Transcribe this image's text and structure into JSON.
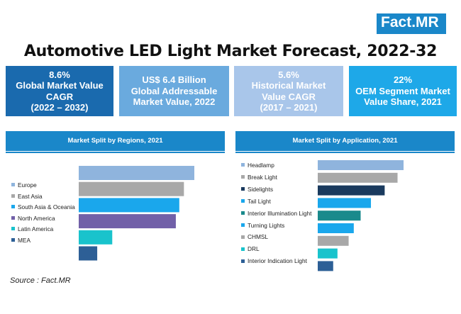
{
  "brand": {
    "logo_text": "Fact",
    "logo_suffix": ".MR"
  },
  "title": "Automotive LED Light Market Forecast, 2022-32",
  "kpis": [
    {
      "line1": "8.6%",
      "line2": "Global Market Value",
      "line3": "CAGR",
      "line4": "(2022 – 2032)",
      "color": "#1a6aae"
    },
    {
      "line1": "US$ 6.4 Billion",
      "line2": "Global Addressable",
      "line3": "Market Value, 2022",
      "line4": "",
      "color": "#6aaade"
    },
    {
      "line1": "5.6%",
      "line2": "Historical Market",
      "line3": "Value CAGR",
      "line4": "(2017 – 2021)",
      "color": "#a9c6ea"
    },
    {
      "line1": "22%",
      "line2": "OEM Segment Market",
      "line3": "Value Share, 2021",
      "line4": "",
      "color": "#1ea8e8"
    }
  ],
  "source": "Source : Fact.MR",
  "chart_data": [
    {
      "type": "bar",
      "orientation": "horizontal",
      "title": "Market Split by Regions, 2021",
      "categories": [
        "Europe",
        "East Asia",
        "South Asia & Oceania",
        "North America",
        "Latin America",
        "MEA"
      ],
      "values": [
        100,
        91,
        87,
        84,
        29,
        16
      ],
      "colors": [
        "#8fb4dd",
        "#a8a8a8",
        "#1aa7ec",
        "#7160a8",
        "#19c3cc",
        "#2d5f96"
      ],
      "xlabel": "",
      "ylabel": "",
      "xlim": [
        0,
        100
      ]
    },
    {
      "type": "bar",
      "orientation": "horizontal",
      "title": "Market Split by Application, 2021",
      "categories": [
        "Headlamp",
        "Break Light",
        "Sidelights",
        "Tail Light",
        "Interior Illumination Light",
        "Turning Lights",
        "CHMSL",
        "DRL",
        "Interior Indication Light"
      ],
      "values": [
        100,
        93,
        78,
        62,
        50,
        42,
        36,
        23,
        18
      ],
      "colors": [
        "#8fb4dd",
        "#a8a8a8",
        "#1a3a5e",
        "#1aa7ec",
        "#1a8a8c",
        "#1aa7ec",
        "#a8a8a8",
        "#19c3cc",
        "#2d5f96"
      ],
      "xlabel": "",
      "ylabel": "",
      "xlim": [
        0,
        100
      ]
    }
  ]
}
